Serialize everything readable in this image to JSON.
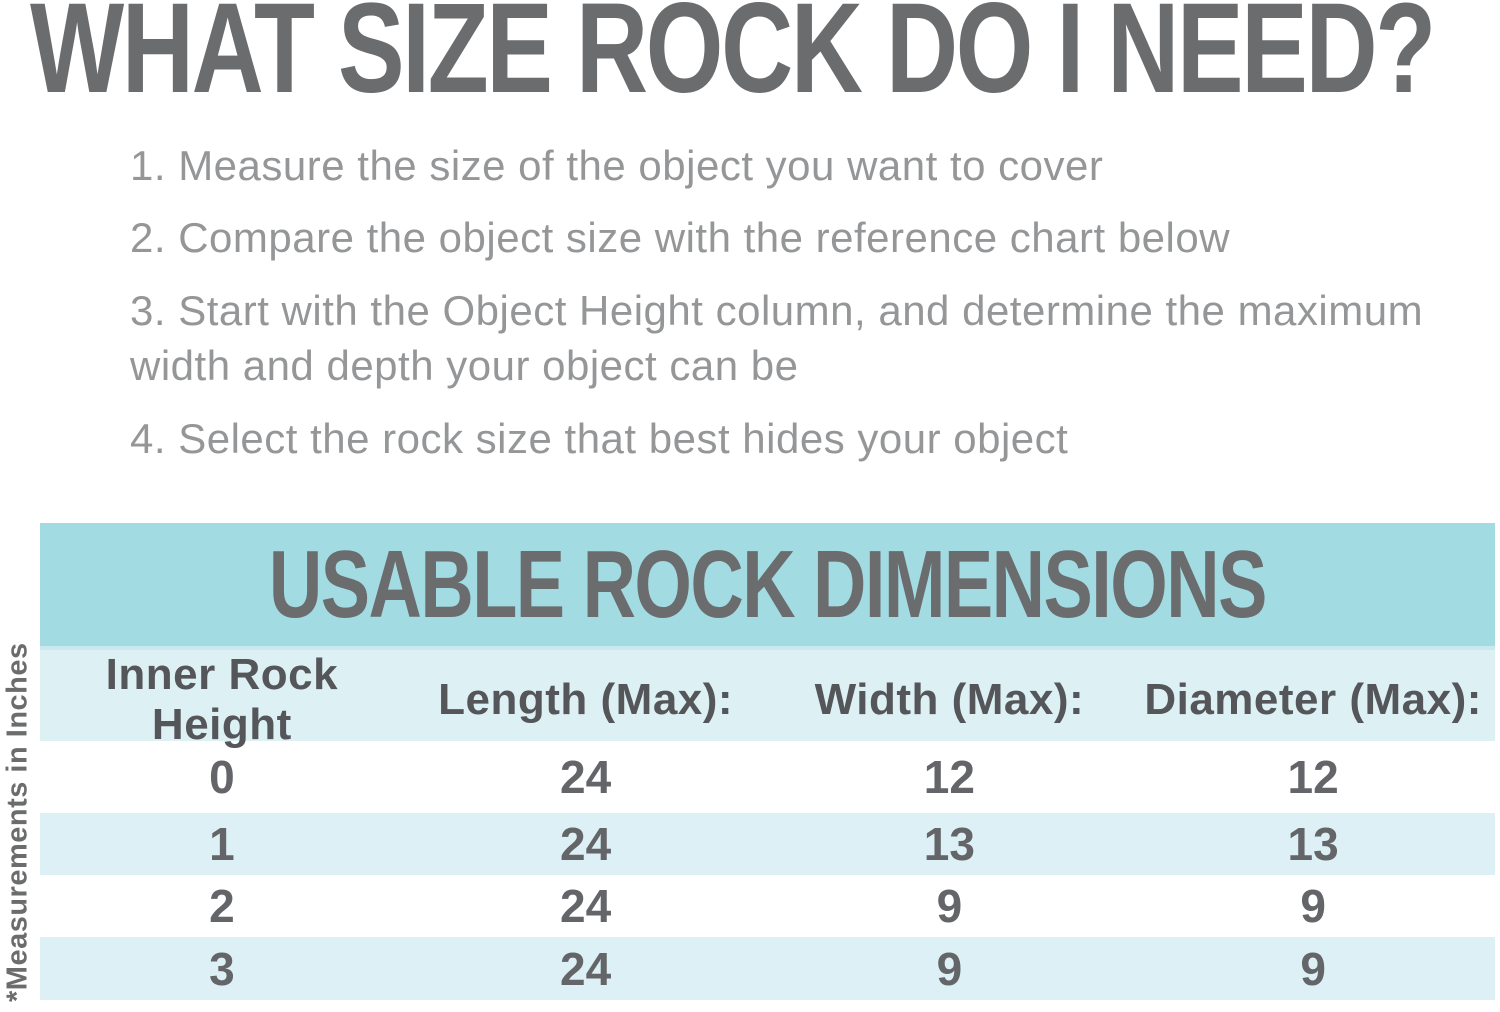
{
  "page": {
    "title": "WHAT SIZE ROCK DO I NEED?",
    "instructions": [
      "1. Measure the size of the object you want to cover",
      "2. Compare the object size with the reference chart below",
      "3. Start with the Object Height column, and determine the maximum width and depth your object can be",
      "4. Select the rock size that best hides your object"
    ],
    "side_note": "*Measurements in Inches"
  },
  "chart_data": {
    "type": "table",
    "title": "USABLE ROCK DIMENSIONS",
    "columns": [
      "Inner Rock Height",
      "Length (Max):",
      "Width (Max):",
      "Diameter (Max):"
    ],
    "rows": [
      [
        "0",
        "24",
        "12",
        "12"
      ],
      [
        "1",
        "24",
        "13",
        "13"
      ],
      [
        "2",
        "24",
        "9",
        "9"
      ],
      [
        "3",
        "24",
        "9",
        "9"
      ]
    ],
    "units_note": "Measurements in Inches"
  },
  "colors": {
    "banner_teal": "#A3DBE3",
    "stripe_blue": "#DCF0F5",
    "title_gray": "#6B6C6E",
    "body_gray": "#949698"
  }
}
